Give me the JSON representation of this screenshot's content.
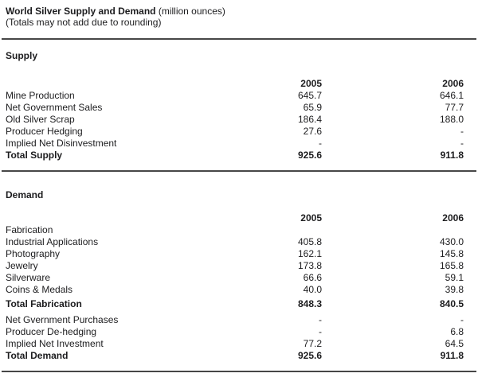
{
  "title": {
    "main": "World Silver Supply and Demand",
    "unit": "(million ounces)",
    "note": "(Totals may not add due to rounding)"
  },
  "columns": [
    "2005",
    "2006"
  ],
  "supply": {
    "heading": "Supply",
    "rows": [
      {
        "label": "Mine Production",
        "v2005": "645.7",
        "v2006": "646.1"
      },
      {
        "label": "Net Government Sales",
        "v2005": "65.9",
        "v2006": "77.7"
      },
      {
        "label": "Old Silver Scrap",
        "v2005": "186.4",
        "v2006": "188.0"
      },
      {
        "label": "Producer Hedging",
        "v2005": "27.6",
        "v2006": "-"
      },
      {
        "label": "Implied Net Disinvestment",
        "v2005": "-",
        "v2006": "-"
      },
      {
        "label": "Total Supply",
        "v2005": "925.6",
        "v2006": "911.8"
      }
    ]
  },
  "demand": {
    "heading": "Demand",
    "rows": [
      {
        "label": "Fabrication",
        "v2005": "",
        "v2006": ""
      },
      {
        "label": "Industrial Applications",
        "v2005": "405.8",
        "v2006": "430.0"
      },
      {
        "label": "Photography",
        "v2005": "162.1",
        "v2006": "145.8"
      },
      {
        "label": "Jewelry",
        "v2005": "173.8",
        "v2006": "165.8"
      },
      {
        "label": "Silverware",
        "v2005": "66.6",
        "v2006": "59.1"
      },
      {
        "label": "Coins & Medals",
        "v2005": "40.0",
        "v2006": "39.8"
      },
      {
        "label": "Total Fabrication",
        "v2005": "848.3",
        "v2006": "840.5"
      },
      {
        "label": "Net Gvernment Purchases",
        "v2005": "-",
        "v2006": "-"
      },
      {
        "label": "Producer De-hedging",
        "v2005": "-",
        "v2006": "6.8"
      },
      {
        "label": "Implied Net Investment",
        "v2005": "77.2",
        "v2006": "64.5"
      },
      {
        "label": "Total Demand",
        "v2005": "925.6",
        "v2006": "911.8"
      }
    ]
  }
}
